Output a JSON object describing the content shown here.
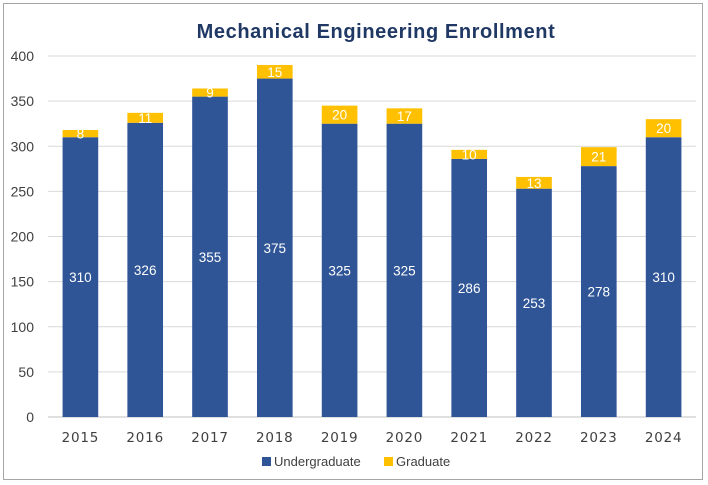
{
  "chart_data": {
    "type": "bar",
    "stacked": true,
    "title": "Mechanical Engineering Enrollment",
    "xlabel": "",
    "ylabel": "",
    "categories": [
      "2015",
      "2016",
      "2017",
      "2018",
      "2019",
      "2020",
      "2021",
      "2022",
      "2023",
      "2024"
    ],
    "series": [
      {
        "name": "Undergraduate",
        "color": "#2f5597",
        "values": [
          310,
          326,
          355,
          375,
          325,
          325,
          286,
          253,
          278,
          310
        ]
      },
      {
        "name": "Graduate",
        "color": "#ffc000",
        "values": [
          8,
          11,
          9,
          15,
          20,
          17,
          10,
          13,
          21,
          20
        ]
      }
    ],
    "ylim": [
      0,
      400
    ],
    "yticks": [
      0,
      50,
      100,
      150,
      200,
      250,
      300,
      350,
      400
    ],
    "grid": true,
    "legend": "bottom-center"
  }
}
